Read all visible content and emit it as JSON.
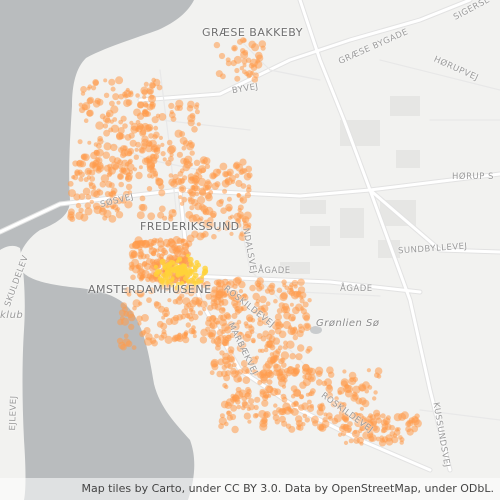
{
  "map": {
    "colors": {
      "land": "#f2f2f0",
      "water": "#b9bcbe",
      "road": "#ffffff",
      "road_casing": "#e2e2e2",
      "building": "#e6e6e4",
      "dot": "#ff9a4a",
      "dense_dot": "#ffd23a"
    },
    "place_labels": {
      "graese_bakkeby": "GRÆSE BAKKEBY",
      "frederikssund": "FREDERIKSSUND",
      "amsterdamhusene": "AMSTERDAMHUSENE"
    },
    "road_labels": {
      "graese_bygade": "GRÆSE BYGADE",
      "sigerslev": "SIGERSL",
      "horupvej": "HØRUPVEJ",
      "byvej": "BYVEJ",
      "horup_s": "HØRUP S",
      "sundbyllevej": "SUNDBYLLEVEJ",
      "agade_1": "ÅGADE",
      "agade_2": "ÅGADE",
      "ndalsvej": "NDALSVEJ",
      "roskildevej_1": "ROSKILDEVEJ",
      "roskildevej_2": "ROSKILDEVEJ",
      "marbaekvej": "MARBÆKVEJ",
      "skuldelevvej": "SKULDELEV",
      "klub": "klub",
      "sundsvej": "KUSSUNDSVEJ",
      "ejlevej": "EJLEVEJ",
      "sdvej": "SØSVEJ"
    },
    "water_labels": {
      "gronlien_so": "Grønlien Sø"
    },
    "attribution": "Map tiles by Carto, under CC BY 3.0. Data by OpenStreetMap, under ODbL."
  }
}
